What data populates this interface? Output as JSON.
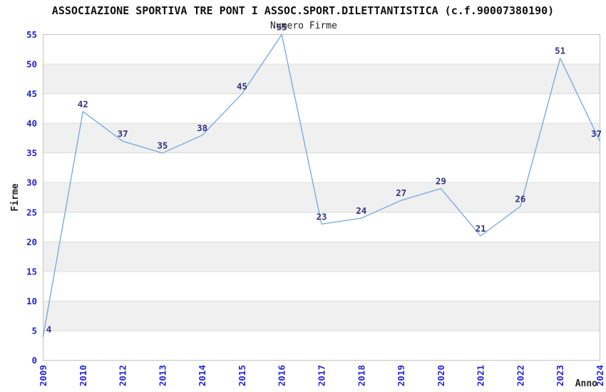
{
  "chart_data": {
    "type": "line",
    "title": "ASSOCIAZIONE SPORTIVA TRE PONT I ASSOC.SPORT.DILETTANTISTICA (c.f.90007380190)",
    "subtitle": "Numero Firme",
    "xlabel": "Anno",
    "ylabel": "Firme",
    "categories": [
      "2009",
      "2010",
      "2012",
      "2013",
      "2014",
      "2015",
      "2016",
      "2017",
      "2018",
      "2019",
      "2020",
      "2021",
      "2022",
      "2023",
      "2024"
    ],
    "values": [
      4,
      42,
      37,
      35,
      38,
      45,
      55,
      23,
      24,
      27,
      29,
      21,
      26,
      51,
      37
    ],
    "ylim": [
      0,
      55
    ],
    "ytick_step": 5,
    "yticks": [
      0,
      5,
      10,
      15,
      20,
      25,
      30,
      35,
      40,
      45,
      50,
      55
    ],
    "grid": true,
    "legend_position": "none",
    "band_pattern": "alternating horizontal bands of 5 units, gray on 5-10,15-20,25-30,35-40,45-50",
    "colors": {
      "line": "#72a7e1",
      "tick_label": "#2323dd",
      "data_label": "#333388",
      "axis_title": "#222222",
      "title": "#111111",
      "subtitle": "#222222",
      "grid_line": "#dcdcdc",
      "band_fill": "#f0f0f0",
      "plot_border": "#c3c3c3",
      "background": "#ffffff"
    }
  }
}
